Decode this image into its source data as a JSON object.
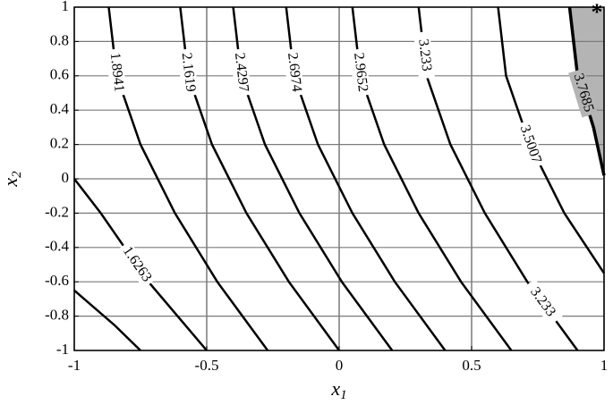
{
  "chart_data": {
    "type": "contour",
    "xlabel": "x",
    "xlabel_sub": "1",
    "ylabel": "x",
    "ylabel_sub": "2",
    "xlim": [
      -1,
      1
    ],
    "ylim": [
      -1,
      1
    ],
    "xticks": [
      -1,
      -0.5,
      0,
      0.5,
      1
    ],
    "yticks": [
      -1,
      -0.8,
      -0.6,
      -0.4,
      -0.2,
      0,
      0.2,
      0.4,
      0.6,
      0.8,
      1
    ],
    "grid": true,
    "color": "#000000",
    "shade_color": "#b4b4b4",
    "contours": [
      {
        "level": null,
        "x": [
          -1,
          -0.85,
          -0.75
        ],
        "y": [
          -0.65,
          -0.85,
          -1
        ]
      },
      {
        "level": 1.6263,
        "x": [
          -1,
          -0.9,
          -0.72,
          -0.5
        ],
        "y": [
          0,
          -0.2,
          -0.6,
          -1
        ]
      },
      {
        "level": 1.8941,
        "x": [
          -0.87,
          -0.84,
          -0.75,
          -0.62,
          -0.46,
          -0.27
        ],
        "y": [
          1,
          0.6,
          0.2,
          -0.2,
          -0.6,
          -1
        ]
      },
      {
        "level": 2.1619,
        "x": [
          -0.6,
          -0.57,
          -0.48,
          -0.35,
          -0.19,
          0
        ],
        "y": [
          1,
          0.6,
          0.2,
          -0.2,
          -0.6,
          -1
        ]
      },
      {
        "level": 2.4297,
        "x": [
          -0.4,
          -0.37,
          -0.28,
          -0.15,
          0.01,
          0.2
        ],
        "y": [
          1,
          0.6,
          0.2,
          -0.2,
          -0.6,
          -1
        ]
      },
      {
        "level": 2.6974,
        "x": [
          -0.2,
          -0.17,
          -0.08,
          0.05,
          0.21,
          0.4
        ],
        "y": [
          1,
          0.6,
          0.2,
          -0.2,
          -0.6,
          -1
        ]
      },
      {
        "level": 2.9652,
        "x": [
          0.05,
          0.08,
          0.17,
          0.3,
          0.46,
          0.65
        ],
        "y": [
          1,
          0.6,
          0.2,
          -0.2,
          -0.6,
          -1
        ]
      },
      {
        "level": 3.233,
        "x": [
          0.3,
          0.33,
          0.42,
          0.55,
          0.71,
          0.9
        ],
        "y": [
          1,
          0.6,
          0.2,
          -0.2,
          -0.6,
          -1
        ]
      },
      {
        "level": 3.5007,
        "x": [
          0.6,
          0.63,
          0.72,
          0.85,
          1
        ],
        "y": [
          1,
          0.6,
          0.2,
          -0.2,
          -0.55
        ]
      },
      {
        "level": 3.7685,
        "x": [
          0.87,
          0.9,
          0.96,
          1
        ],
        "y": [
          1,
          0.6,
          0.3,
          0.02
        ]
      }
    ],
    "optimum": {
      "x": 1,
      "y": 1
    }
  }
}
